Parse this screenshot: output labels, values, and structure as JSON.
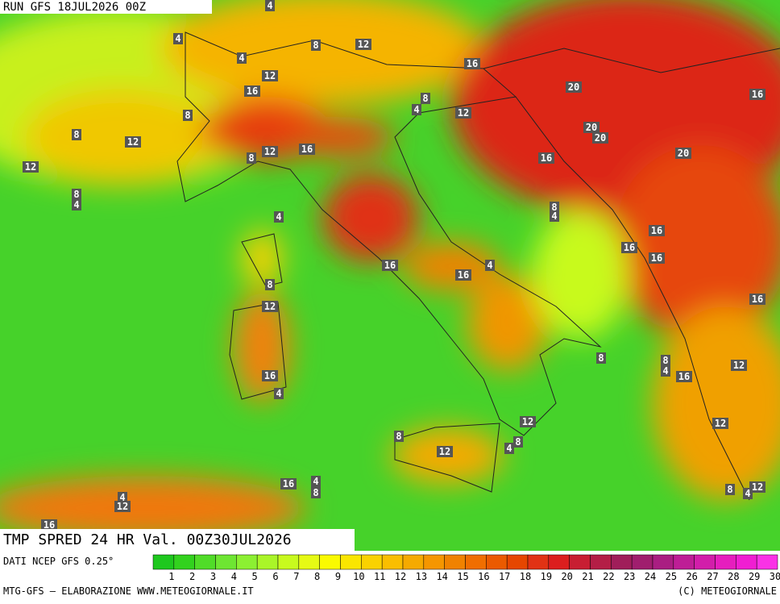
{
  "header": {
    "run": "RUN GFS 18JUL2026 00Z"
  },
  "map": {
    "labels": [
      4,
      4,
      4,
      8,
      12,
      16,
      12,
      16,
      8,
      8,
      12,
      12,
      8,
      4,
      8,
      12,
      16,
      4,
      8,
      12,
      20,
      16,
      20,
      20,
      16,
      20,
      8,
      4,
      4,
      16,
      16,
      16,
      16,
      4,
      16,
      8,
      12,
      16,
      8,
      8,
      4,
      16,
      12,
      16,
      4,
      12,
      12,
      8,
      8,
      4,
      12,
      16,
      4,
      8,
      4,
      12,
      8,
      12,
      4,
      16
    ]
  },
  "footer": {
    "title": "TMP SPRED 24 HR Val. 00Z30JUL2026",
    "source": "DATI NCEP GFS 0.25°",
    "credit": "MTG-GFS — ELABORAZIONE WWW.METEOGIORNALE.IT",
    "copyright": "(C) METEOGIORNALE"
  },
  "colorbar": {
    "labels": [
      1,
      2,
      3,
      4,
      5,
      6,
      7,
      8,
      9,
      10,
      11,
      12,
      13,
      14,
      15,
      16,
      17,
      18,
      19,
      20,
      21,
      22,
      23,
      24,
      25,
      26,
      27,
      28,
      29,
      30
    ],
    "colors": [
      "#1ec81e",
      "#32d21e",
      "#50dc28",
      "#6ee632",
      "#8cf032",
      "#aaf528",
      "#c8fa1e",
      "#e6fa14",
      "#fafa00",
      "#fae600",
      "#fad200",
      "#fabe00",
      "#f5aa00",
      "#f59600",
      "#f08200",
      "#f06e00",
      "#eb5a00",
      "#e64600",
      "#e13214",
      "#dc1e1e",
      "#c81e32",
      "#b41e46",
      "#a01e5a",
      "#a01e6e",
      "#aa1e82",
      "#be1e96",
      "#d21eaa",
      "#e61ebe",
      "#f01ed2",
      "#fa32e6"
    ]
  }
}
